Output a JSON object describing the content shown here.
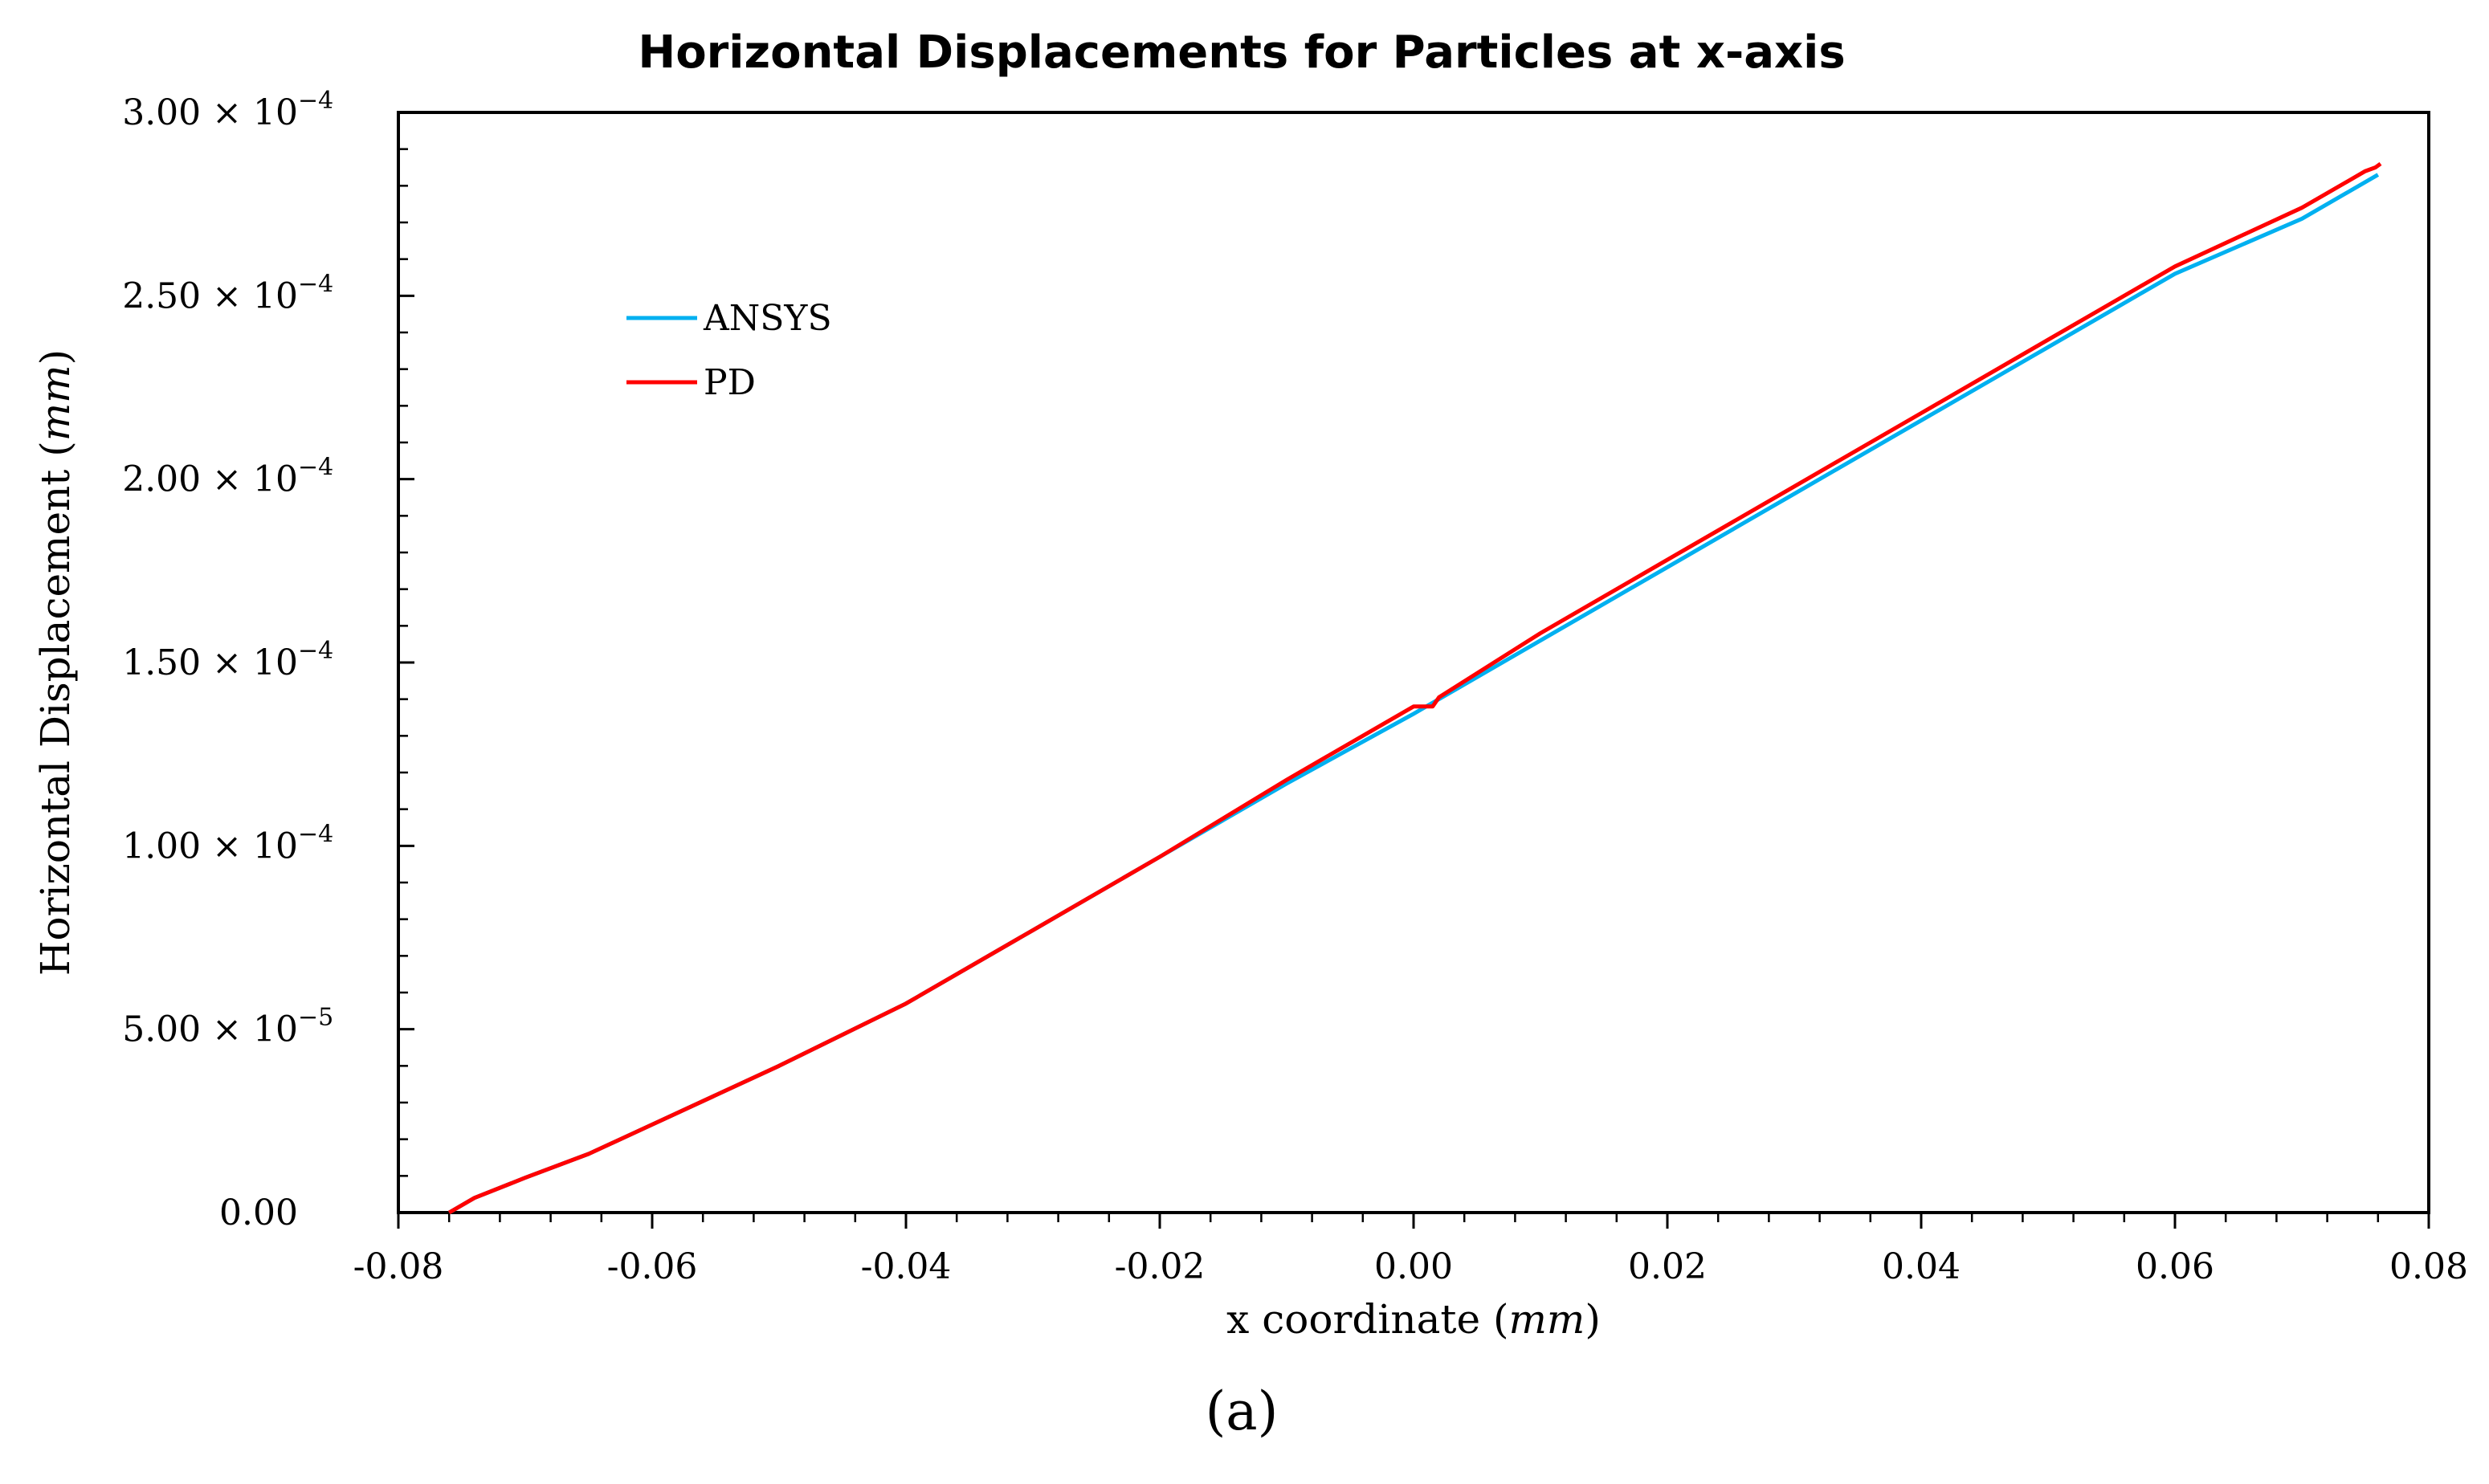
{
  "chart_data": {
    "type": "line",
    "title": "Horizontal Displacements for Particles at x-axis",
    "xlabel": "x coordinate",
    "xlabel_unit": "mm",
    "ylabel": "Horizontal Displacement",
    "ylabel_unit": "mm",
    "xlim": [
      -0.08,
      0.08
    ],
    "ylim": [
      0,
      0.0003
    ],
    "grid": false,
    "legend_position": "top-left",
    "x_ticks": [
      {
        "value": -0.08,
        "label": "-0.08"
      },
      {
        "value": -0.06,
        "label": "-0.06"
      },
      {
        "value": -0.04,
        "label": "-0.04"
      },
      {
        "value": -0.02,
        "label": "-0.02"
      },
      {
        "value": 0.0,
        "label": "0.00"
      },
      {
        "value": 0.02,
        "label": "0.02"
      },
      {
        "value": 0.04,
        "label": "0.04"
      },
      {
        "value": 0.06,
        "label": "0.06"
      },
      {
        "value": 0.08,
        "label": "0.08"
      }
    ],
    "y_ticks": [
      {
        "value": 0,
        "mantissa": "0.00",
        "exponent": ""
      },
      {
        "value": 5e-05,
        "mantissa": "5.00 × 10",
        "exponent": "−5"
      },
      {
        "value": 0.0001,
        "mantissa": "1.00 × 10",
        "exponent": "−4"
      },
      {
        "value": 0.00015,
        "mantissa": "1.50 × 10",
        "exponent": "−4"
      },
      {
        "value": 0.0002,
        "mantissa": "2.00 × 10",
        "exponent": "−4"
      },
      {
        "value": 0.00025,
        "mantissa": "2.50 × 10",
        "exponent": "−4"
      },
      {
        "value": 0.0003,
        "mantissa": "3.00 × 10",
        "exponent": "−4"
      }
    ],
    "series": [
      {
        "name": "ANSYS",
        "color": "#00b0f0",
        "x": [
          -0.076,
          -0.074,
          -0.07,
          -0.065,
          -0.06,
          -0.05,
          -0.04,
          -0.03,
          -0.02,
          -0.01,
          0.0,
          0.01,
          0.02,
          0.03,
          0.04,
          0.05,
          0.06,
          0.07,
          0.076
        ],
        "y": [
          0.0,
          4e-06,
          9.5e-06,
          1.6e-05,
          2.4e-05,
          4e-05,
          5.7e-05,
          7.7e-05,
          9.7e-05,
          0.000117,
          0.000136,
          0.000156,
          0.000176,
          0.000196,
          0.000216,
          0.000236,
          0.000256,
          0.000271,
          0.000283
        ]
      },
      {
        "name": "PD",
        "color": "#ff0000",
        "x": [
          -0.076,
          -0.074,
          -0.07,
          -0.065,
          -0.06,
          -0.05,
          -0.04,
          -0.03,
          -0.02,
          -0.01,
          -0.001,
          0.0,
          0.0015,
          0.002,
          0.01,
          0.02,
          0.03,
          0.04,
          0.05,
          0.06,
          0.07,
          0.075,
          0.0758,
          0.0762
        ],
        "y": [
          0.0,
          4e-06,
          9.5e-06,
          1.6e-05,
          2.4e-05,
          4e-05,
          5.7e-05,
          7.7e-05,
          9.7e-05,
          0.000118,
          0.000136,
          0.000138,
          0.000138,
          0.0001405,
          0.000158,
          0.000178,
          0.000198,
          0.000218,
          0.000238,
          0.000258,
          0.000274,
          0.000284,
          0.000285,
          0.000286
        ]
      }
    ]
  },
  "caption": "(a)"
}
